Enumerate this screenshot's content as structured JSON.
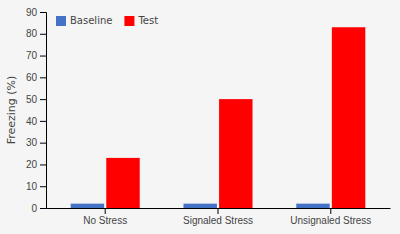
{
  "chart_data": {
    "type": "bar",
    "ylabel": "Freezing (%)",
    "categories": [
      "No Stress",
      "Signaled Stress",
      "Unsignaled Stress"
    ],
    "series": [
      {
        "name": "Baseline",
        "color": "#4472C4",
        "values": [
          2,
          2,
          2
        ]
      },
      {
        "name": "Test",
        "color": "#FF0000",
        "values": [
          23,
          50,
          83
        ]
      }
    ],
    "ylim": [
      0,
      90
    ],
    "yticks": [
      0,
      10,
      20,
      30,
      40,
      50,
      60,
      70,
      80,
      90
    ],
    "grid": false,
    "legend": "top-left"
  }
}
